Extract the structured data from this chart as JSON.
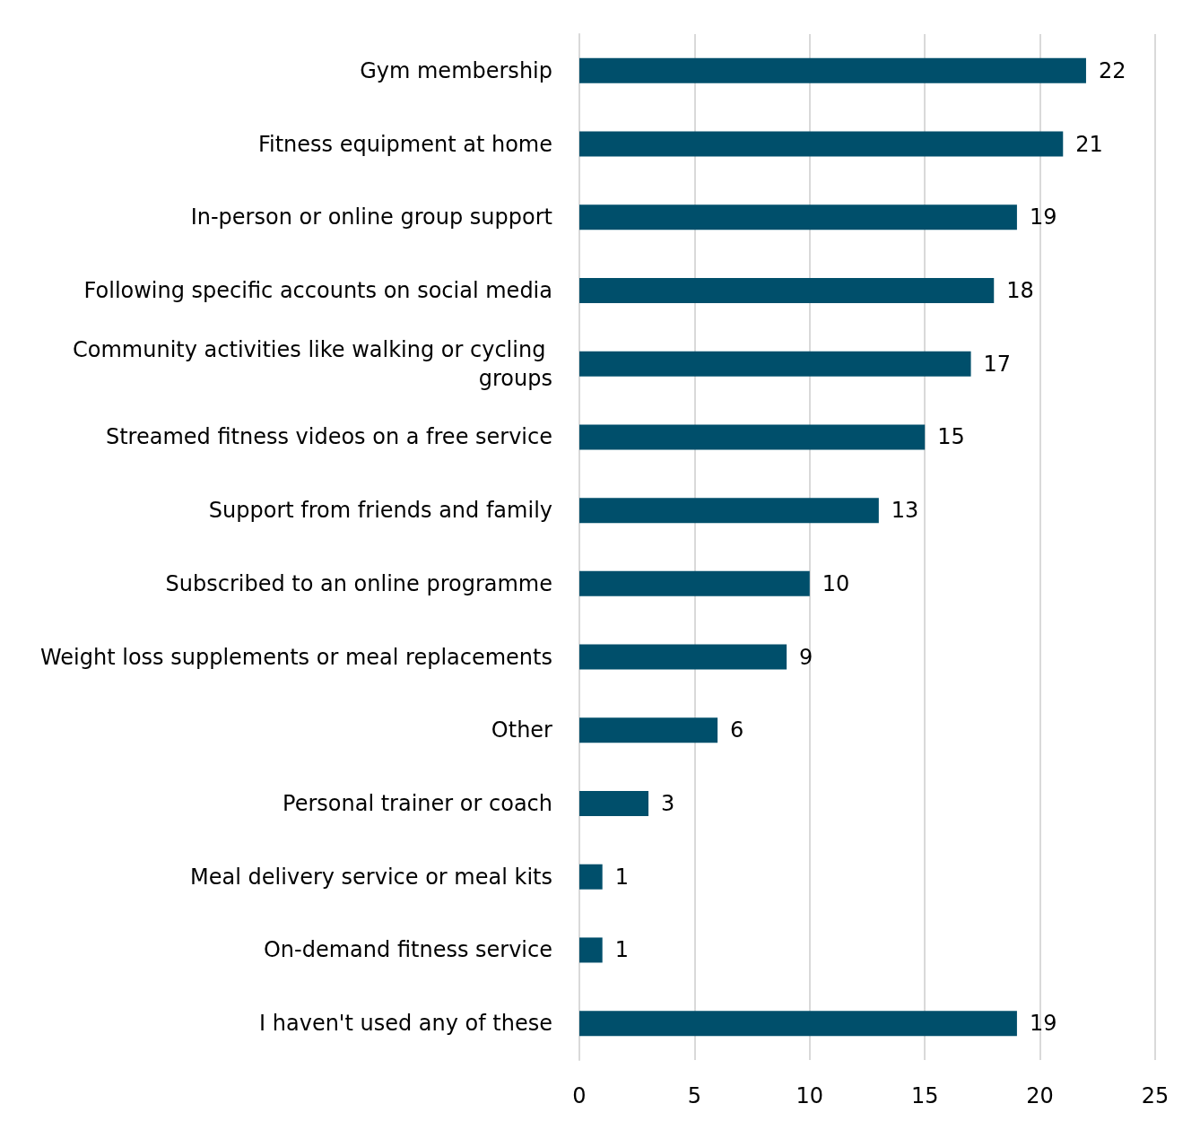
{
  "chart_data": {
    "type": "bar",
    "orientation": "horizontal",
    "categories": [
      "Gym membership",
      "Fitness equipment at home",
      "In-person or online group support",
      "Following specific accounts on social media",
      "Community activities like walking or cycling groups",
      "Streamed fitness videos on a free service",
      "Support from friends and family",
      "Subscribed to an online programme",
      "Weight loss supplements or meal replacements",
      "Other",
      "Personal trainer or coach",
      "Meal delivery service or meal kits",
      "On-demand fitness service",
      "I haven't used any of these"
    ],
    "values": [
      22,
      21,
      19,
      18,
      17,
      15,
      13,
      10,
      9,
      6,
      3,
      1,
      1,
      19
    ],
    "color": "#004f6b",
    "xlim": [
      0,
      25
    ],
    "xticks": [
      0,
      5,
      10,
      15,
      20,
      25
    ],
    "grid": "x",
    "data_labels": true
  }
}
